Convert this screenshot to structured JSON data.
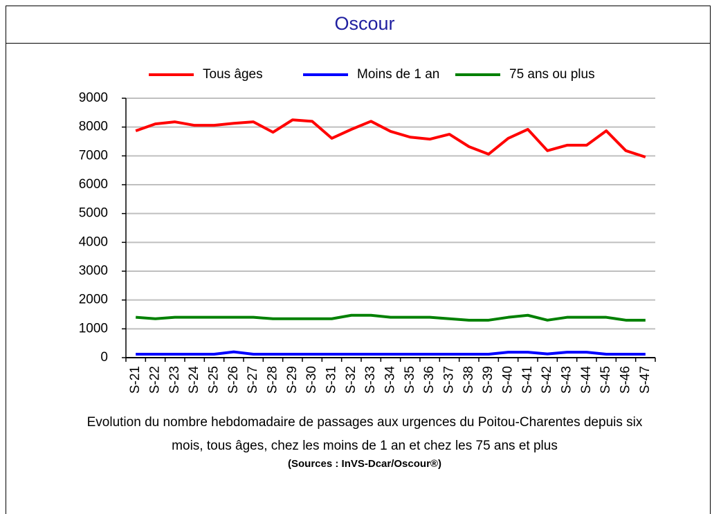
{
  "chart_data": {
    "type": "line",
    "title": "Oscour",
    "categories": [
      "S-21",
      "S-22",
      "S-23",
      "S-24",
      "S-25",
      "S-26",
      "S-27",
      "S-28",
      "S-29",
      "S-30",
      "S-31",
      "S-32",
      "S-33",
      "S-34",
      "S-35",
      "S-36",
      "S-37",
      "S-38",
      "S-39",
      "S-40",
      "S-41",
      "S-42",
      "S-43",
      "S-44",
      "S-45",
      "S-46",
      "S-47"
    ],
    "series": [
      {
        "name": "Tous âges",
        "color": "#ff0000",
        "values": [
          7870,
          8110,
          8180,
          8060,
          8060,
          8130,
          8180,
          7820,
          8250,
          8200,
          7610,
          7920,
          8200,
          7850,
          7650,
          7580,
          7750,
          7320,
          7060,
          7610,
          7920,
          7180,
          7370,
          7370,
          7870,
          7180,
          6960
        ]
      },
      {
        "name": "Moins de 1 an",
        "color": "#0000ff",
        "values": [
          120,
          120,
          120,
          120,
          120,
          200,
          120,
          120,
          120,
          120,
          120,
          120,
          120,
          120,
          120,
          120,
          120,
          120,
          120,
          190,
          190,
          130,
          190,
          190,
          120,
          120,
          120
        ]
      },
      {
        "name": "75 ans ou plus",
        "color": "#008000",
        "values": [
          1400,
          1350,
          1400,
          1400,
          1400,
          1400,
          1400,
          1350,
          1350,
          1350,
          1350,
          1470,
          1470,
          1400,
          1400,
          1400,
          1350,
          1300,
          1300,
          1400,
          1470,
          1300,
          1400,
          1400,
          1400,
          1300,
          1300
        ]
      }
    ],
    "ylim": [
      0,
      9000
    ],
    "yticks": [
      0,
      1000,
      2000,
      3000,
      4000,
      5000,
      6000,
      7000,
      8000,
      9000
    ],
    "grid": true,
    "legend": "top",
    "caption": [
      "Evolution du nombre hebdomadaire de passages aux urgences du Poitou-Charentes depuis six",
      "mois, tous âges, chez les moins de 1 an et chez les 75 ans  et plus"
    ],
    "source": "(Sources : InVS-Dcar/Oscour®)"
  }
}
